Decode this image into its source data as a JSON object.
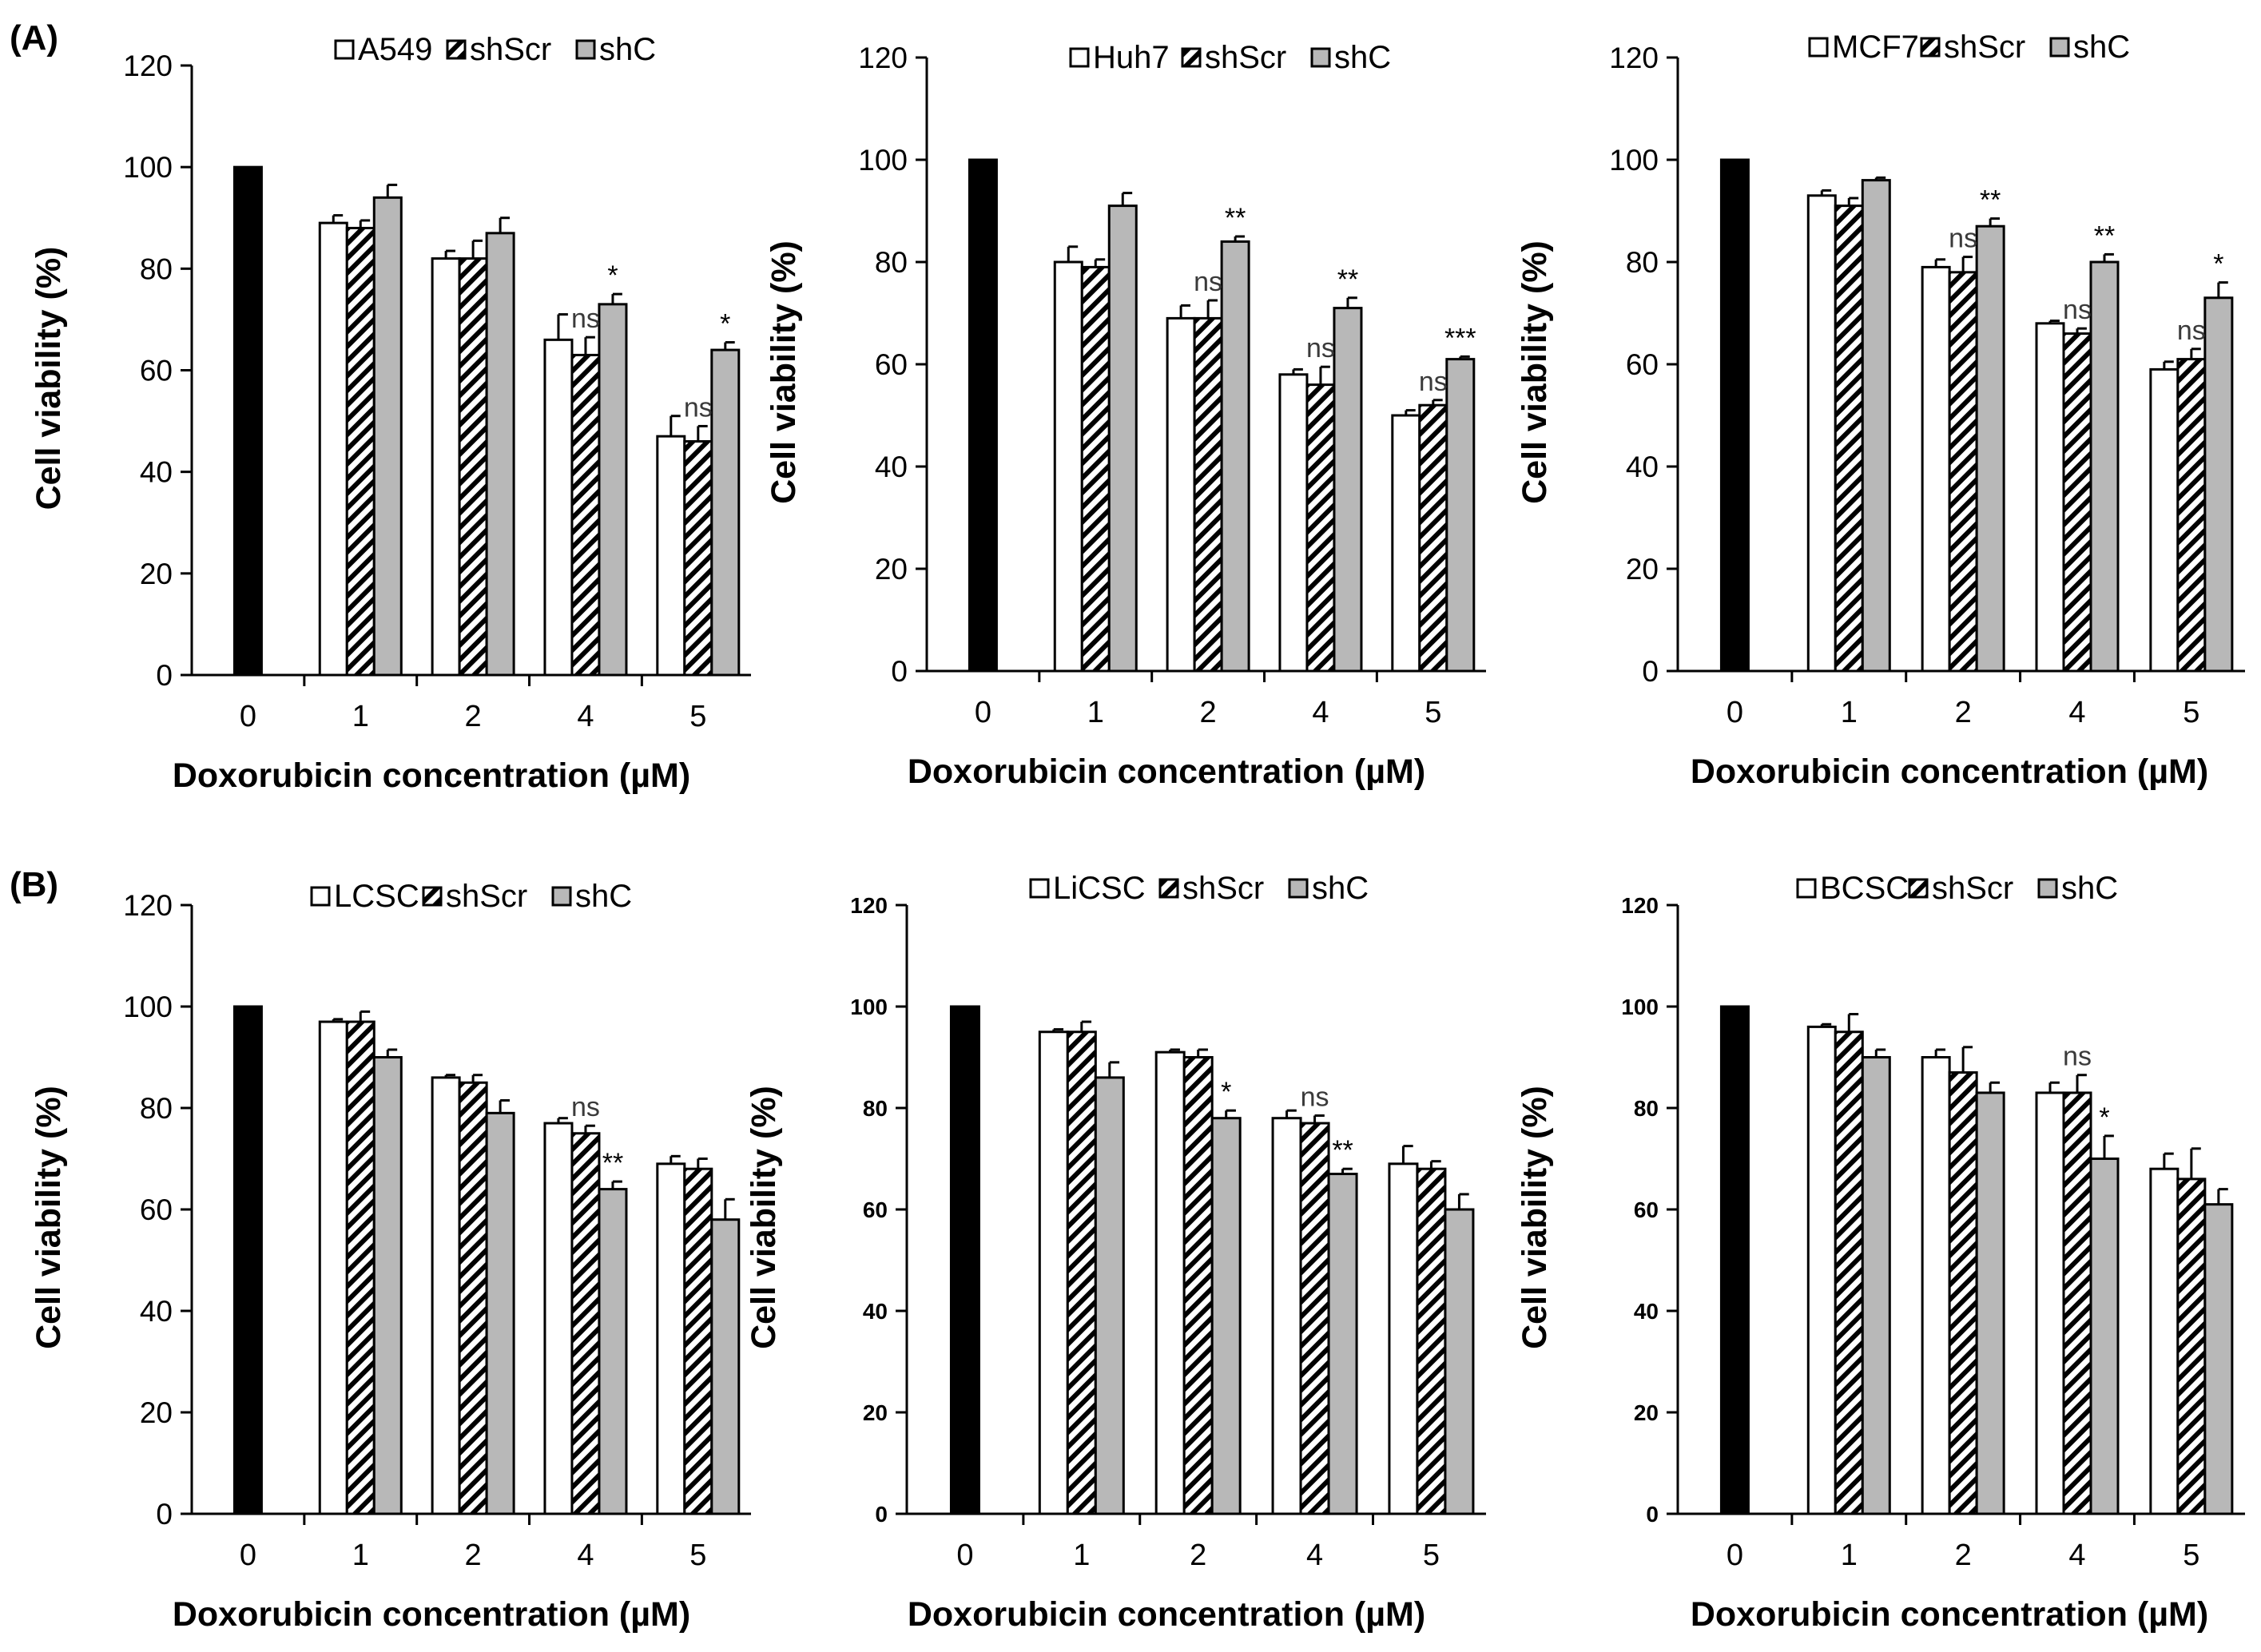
{
  "panel_labels": [
    "(A)",
    "(B)"
  ],
  "colors": {
    "control": "#000000",
    "parent": "#ffffff",
    "shScr_hatch": "#000000",
    "shC": "#b8b8b8",
    "axis": "#000000"
  },
  "chart_data": [
    {
      "type": "bar",
      "panel": "A",
      "categories": [
        "0",
        "1",
        "2",
        "4",
        "5"
      ],
      "series": [
        {
          "name": "A549",
          "values": [
            null,
            89,
            82,
            66,
            47
          ],
          "errors": [
            null,
            1.5,
            1.5,
            5,
            4
          ]
        },
        {
          "name": "shScr",
          "values": [
            null,
            88,
            82,
            63,
            46
          ],
          "errors": [
            null,
            1.5,
            3.5,
            3.5,
            3
          ]
        },
        {
          "name": "shC",
          "values": [
            null,
            94,
            87,
            73,
            64
          ],
          "errors": [
            null,
            2.5,
            3,
            2,
            1.5
          ]
        }
      ],
      "control_value": 100,
      "annotations": [
        {
          "category": "4",
          "series": "shScr",
          "text": "ns"
        },
        {
          "category": "4",
          "series": "shC",
          "text": "*"
        },
        {
          "category": "5",
          "series": "shScr",
          "text": "ns"
        },
        {
          "category": "5",
          "series": "shC",
          "text": "*"
        }
      ],
      "ylabel": "Cell viability (%)",
      "xlabel": "Doxorubicin concentration (µM)",
      "ylim": [
        0,
        120
      ],
      "yticks": [
        "0",
        "20",
        "40",
        "60",
        "80",
        "100",
        "120"
      ]
    },
    {
      "type": "bar",
      "panel": "A",
      "categories": [
        "0",
        "1",
        "2",
        "4",
        "5"
      ],
      "series": [
        {
          "name": "Huh7",
          "values": [
            null,
            80,
            69,
            58,
            50
          ],
          "errors": [
            null,
            3,
            2.5,
            1,
            1
          ]
        },
        {
          "name": "shScr",
          "values": [
            null,
            79,
            69,
            56,
            52
          ],
          "errors": [
            null,
            1.5,
            3.5,
            3.5,
            1
          ]
        },
        {
          "name": "shC",
          "values": [
            null,
            91,
            84,
            71,
            61
          ],
          "errors": [
            null,
            2.5,
            1,
            2,
            0.5
          ]
        }
      ],
      "control_value": 100,
      "annotations": [
        {
          "category": "2",
          "series": "shScr",
          "text": "ns"
        },
        {
          "category": "2",
          "series": "shC",
          "text": "**"
        },
        {
          "category": "4",
          "series": "shScr",
          "text": "ns"
        },
        {
          "category": "4",
          "series": "shC",
          "text": "**"
        },
        {
          "category": "5",
          "series": "shScr",
          "text": "ns"
        },
        {
          "category": "5",
          "series": "shC",
          "text": "***"
        }
      ],
      "ylabel": "Cell viability (%)",
      "xlabel": "Doxorubicin concentration (µM)",
      "ylim": [
        0,
        120
      ],
      "yticks": [
        "0",
        "20",
        "40",
        "60",
        "80",
        "100",
        "120"
      ]
    },
    {
      "type": "bar",
      "panel": "A",
      "categories": [
        "0",
        "1",
        "2",
        "4",
        "5"
      ],
      "series": [
        {
          "name": "MCF7",
          "values": [
            null,
            93,
            79,
            68,
            59
          ],
          "errors": [
            null,
            1,
            1.5,
            0.5,
            1.5
          ]
        },
        {
          "name": "shScr",
          "values": [
            null,
            91,
            78,
            66,
            61
          ],
          "errors": [
            null,
            1.5,
            3,
            1,
            2
          ]
        },
        {
          "name": "shC",
          "values": [
            null,
            96,
            87,
            80,
            73
          ],
          "errors": [
            null,
            0.5,
            1.5,
            1.5,
            3
          ]
        }
      ],
      "control_value": 100,
      "annotations": [
        {
          "category": "2",
          "series": "shScr",
          "text": "ns"
        },
        {
          "category": "2",
          "series": "shC",
          "text": "**"
        },
        {
          "category": "4",
          "series": "shScr",
          "text": "ns"
        },
        {
          "category": "4",
          "series": "shC",
          "text": "**"
        },
        {
          "category": "5",
          "series": "shScr",
          "text": "ns"
        },
        {
          "category": "5",
          "series": "shC",
          "text": "*"
        }
      ],
      "ylabel": "Cell viability (%)",
      "xlabel": "Doxorubicin concentration (µM)",
      "ylim": [
        0,
        120
      ],
      "yticks": [
        "0",
        "20",
        "40",
        "60",
        "80",
        "100",
        "120"
      ]
    },
    {
      "type": "bar",
      "panel": "B",
      "categories": [
        "0",
        "1",
        "2",
        "4",
        "5"
      ],
      "series": [
        {
          "name": "LCSC",
          "values": [
            null,
            97,
            86,
            77,
            69
          ],
          "errors": [
            null,
            0.5,
            0.5,
            1,
            1.5
          ]
        },
        {
          "name": "shScr",
          "values": [
            null,
            97,
            85,
            75,
            68
          ],
          "errors": [
            null,
            2,
            1.5,
            1.5,
            2
          ]
        },
        {
          "name": "shC",
          "values": [
            null,
            90,
            79,
            64,
            58
          ],
          "errors": [
            null,
            1.5,
            2.5,
            1.5,
            4
          ]
        }
      ],
      "control_value": 100,
      "annotations": [
        {
          "category": "4",
          "series": "shScr",
          "text": "ns"
        },
        {
          "category": "4",
          "series": "shC",
          "text": "**"
        }
      ],
      "ylabel": "Cell viability (%)",
      "xlabel": "Doxorubicin concentration (µM)",
      "ylim": [
        0,
        120
      ],
      "yticks": [
        "0",
        "20",
        "40",
        "60",
        "80",
        "100",
        "120"
      ]
    },
    {
      "type": "bar",
      "panel": "B",
      "categories": [
        "0",
        "1",
        "2",
        "4",
        "5"
      ],
      "series": [
        {
          "name": "LiCSC",
          "values": [
            null,
            95,
            91,
            78,
            69
          ],
          "errors": [
            null,
            0.5,
            0.5,
            1.5,
            3.5
          ]
        },
        {
          "name": "shScr",
          "values": [
            null,
            95,
            90,
            77,
            68
          ],
          "errors": [
            null,
            2,
            1.5,
            1.5,
            1.5
          ]
        },
        {
          "name": "shC",
          "values": [
            null,
            86,
            78,
            67,
            60
          ],
          "errors": [
            null,
            3,
            1.5,
            1,
            3
          ]
        }
      ],
      "control_value": 100,
      "annotations": [
        {
          "category": "2",
          "series": "shC",
          "text": "*"
        },
        {
          "category": "4",
          "series": "shScr",
          "text": "ns"
        },
        {
          "category": "4",
          "series": "shC",
          "text": "**"
        }
      ],
      "ylabel": "Cell viability (%)",
      "xlabel": "Doxorubicin concentration (µM)",
      "ylim": [
        0,
        120
      ],
      "yticks": [
        "0",
        "20",
        "40",
        "60",
        "80",
        "100",
        "120"
      ]
    },
    {
      "type": "bar",
      "panel": "B",
      "categories": [
        "0",
        "1",
        "2",
        "4",
        "5"
      ],
      "series": [
        {
          "name": "BCSC",
          "values": [
            null,
            96,
            90,
            83,
            68
          ],
          "errors": [
            null,
            0.5,
            1.5,
            2,
            3
          ]
        },
        {
          "name": "shScr",
          "values": [
            null,
            95,
            87,
            83,
            66
          ],
          "errors": [
            null,
            3.5,
            5,
            3.5,
            6
          ]
        },
        {
          "name": "shC",
          "values": [
            null,
            90,
            83,
            70,
            61
          ],
          "errors": [
            null,
            1.5,
            2,
            4.5,
            3
          ]
        }
      ],
      "control_value": 100,
      "annotations": [
        {
          "category": "4",
          "series": "shScr",
          "text": "ns"
        },
        {
          "category": "4",
          "series": "shC",
          "text": "*"
        }
      ],
      "ylabel": "Cell viability (%)",
      "xlabel": "Doxorubicin concentration (µM)",
      "ylim": [
        0,
        120
      ],
      "yticks": [
        "0",
        "20",
        "40",
        "60",
        "80",
        "100",
        "120"
      ]
    }
  ]
}
